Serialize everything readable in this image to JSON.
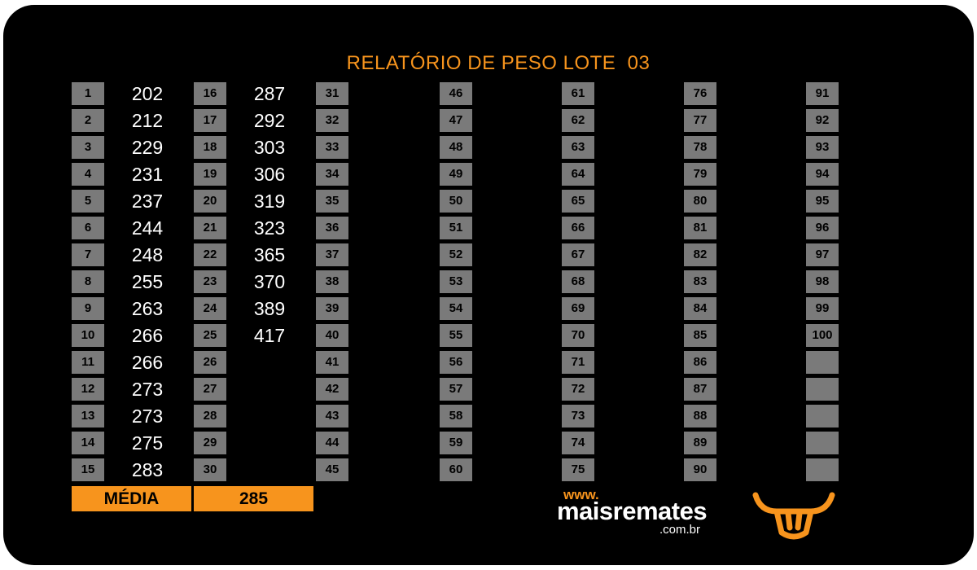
{
  "title": "RELATÓRIO DE PESO LOTE  03",
  "columns": [
    {
      "rows": [
        {
          "num": "1",
          "weight": "202"
        },
        {
          "num": "2",
          "weight": "212"
        },
        {
          "num": "3",
          "weight": "229"
        },
        {
          "num": "4",
          "weight": "231"
        },
        {
          "num": "5",
          "weight": "237"
        },
        {
          "num": "6",
          "weight": "244"
        },
        {
          "num": "7",
          "weight": "248"
        },
        {
          "num": "8",
          "weight": "255"
        },
        {
          "num": "9",
          "weight": "263"
        },
        {
          "num": "10",
          "weight": "266"
        },
        {
          "num": "11",
          "weight": "266"
        },
        {
          "num": "12",
          "weight": "273"
        },
        {
          "num": "13",
          "weight": "273"
        },
        {
          "num": "14",
          "weight": "275"
        },
        {
          "num": "15",
          "weight": "283"
        }
      ]
    },
    {
      "rows": [
        {
          "num": "16",
          "weight": "287"
        },
        {
          "num": "17",
          "weight": "292"
        },
        {
          "num": "18",
          "weight": "303"
        },
        {
          "num": "19",
          "weight": "306"
        },
        {
          "num": "20",
          "weight": "319"
        },
        {
          "num": "21",
          "weight": "323"
        },
        {
          "num": "22",
          "weight": "365"
        },
        {
          "num": "23",
          "weight": "370"
        },
        {
          "num": "24",
          "weight": "389"
        },
        {
          "num": "25",
          "weight": "417"
        },
        {
          "num": "26",
          "weight": ""
        },
        {
          "num": "27",
          "weight": ""
        },
        {
          "num": "28",
          "weight": ""
        },
        {
          "num": "29",
          "weight": ""
        },
        {
          "num": "30",
          "weight": ""
        }
      ]
    },
    {
      "rows": [
        {
          "num": "31"
        },
        {
          "num": "32"
        },
        {
          "num": "33"
        },
        {
          "num": "34"
        },
        {
          "num": "35"
        },
        {
          "num": "36"
        },
        {
          "num": "37"
        },
        {
          "num": "38"
        },
        {
          "num": "39"
        },
        {
          "num": "40"
        },
        {
          "num": "41"
        },
        {
          "num": "42"
        },
        {
          "num": "43"
        },
        {
          "num": "44"
        },
        {
          "num": "45"
        }
      ]
    },
    {
      "rows": [
        {
          "num": "46"
        },
        {
          "num": "47"
        },
        {
          "num": "48"
        },
        {
          "num": "49"
        },
        {
          "num": "50"
        },
        {
          "num": "51"
        },
        {
          "num": "52"
        },
        {
          "num": "53"
        },
        {
          "num": "54"
        },
        {
          "num": "55"
        },
        {
          "num": "56"
        },
        {
          "num": "57"
        },
        {
          "num": "58"
        },
        {
          "num": "59"
        },
        {
          "num": "60"
        }
      ]
    },
    {
      "rows": [
        {
          "num": "61"
        },
        {
          "num": "62"
        },
        {
          "num": "63"
        },
        {
          "num": "64"
        },
        {
          "num": "65"
        },
        {
          "num": "66"
        },
        {
          "num": "67"
        },
        {
          "num": "68"
        },
        {
          "num": "69"
        },
        {
          "num": "70"
        },
        {
          "num": "71"
        },
        {
          "num": "72"
        },
        {
          "num": "73"
        },
        {
          "num": "74"
        },
        {
          "num": "75"
        }
      ]
    },
    {
      "rows": [
        {
          "num": "76"
        },
        {
          "num": "77"
        },
        {
          "num": "78"
        },
        {
          "num": "79"
        },
        {
          "num": "80"
        },
        {
          "num": "81"
        },
        {
          "num": "82"
        },
        {
          "num": "83"
        },
        {
          "num": "84"
        },
        {
          "num": "85"
        },
        {
          "num": "86"
        },
        {
          "num": "87"
        },
        {
          "num": "88"
        },
        {
          "num": "89"
        },
        {
          "num": "90"
        }
      ]
    },
    {
      "rows": [
        {
          "num": "91"
        },
        {
          "num": "92"
        },
        {
          "num": "93"
        },
        {
          "num": "94"
        },
        {
          "num": "95"
        },
        {
          "num": "96"
        },
        {
          "num": "97"
        },
        {
          "num": "98"
        },
        {
          "num": "99"
        },
        {
          "num": "100"
        },
        {
          "num": ""
        },
        {
          "num": ""
        },
        {
          "num": ""
        },
        {
          "num": ""
        },
        {
          "num": ""
        }
      ]
    }
  ],
  "media": {
    "label": "MÉDIA",
    "value": "285"
  },
  "brand": {
    "www": "www.",
    "name": "maisremates",
    "domain": ".com.br",
    "logo_icon": "bull-head-icon"
  },
  "colors": {
    "accent": "#f7941d",
    "background": "#000000",
    "cell": "#7a7a7a",
    "text": "#ffffff"
  }
}
